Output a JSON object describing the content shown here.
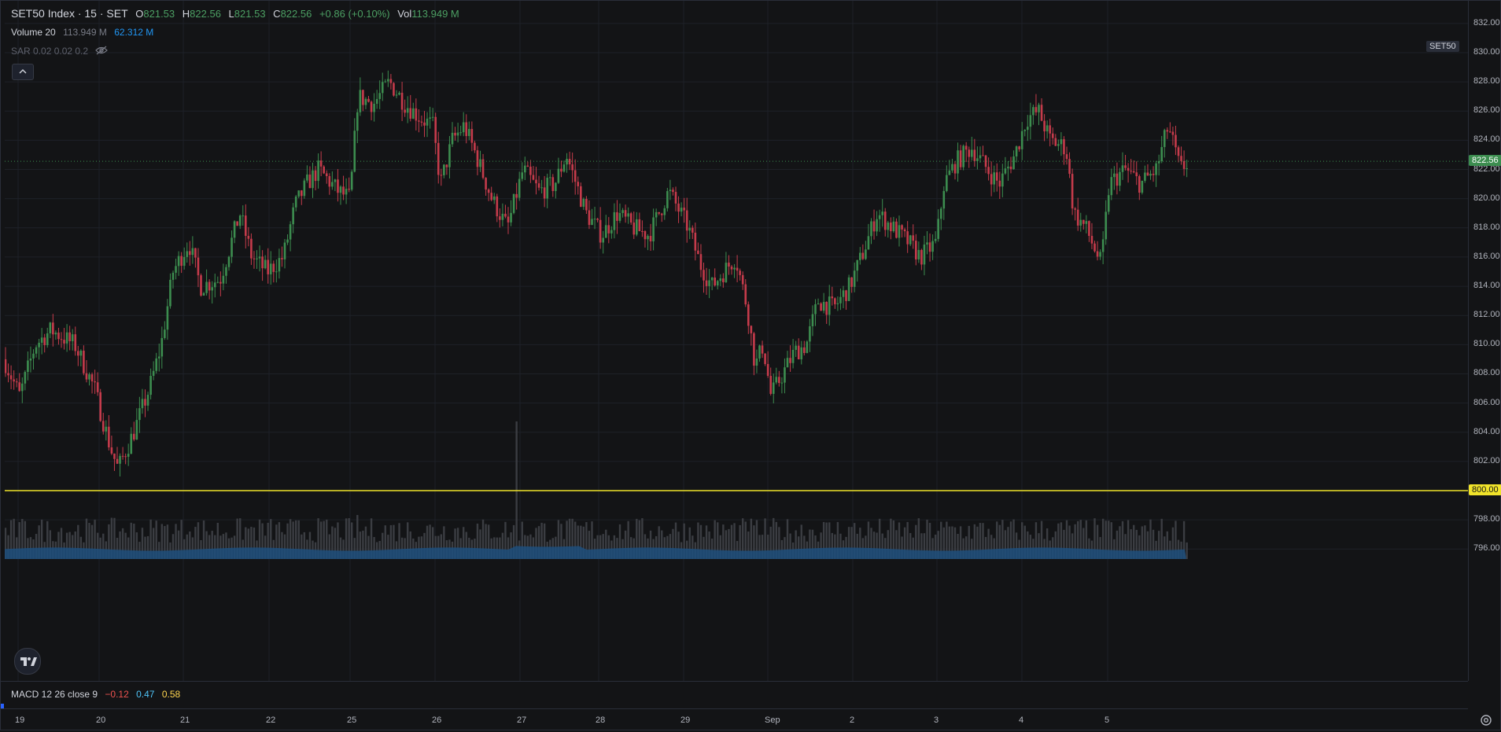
{
  "header": {
    "symbol": "SET50 Index · 15 · SET",
    "o_label": "O",
    "o_value": "821.53",
    "h_label": "H",
    "h_value": "822.56",
    "l_label": "L",
    "l_value": "821.53",
    "c_label": "C",
    "c_value": "822.56",
    "change": "+0.86 (+0.10%)",
    "vol_label": "Vol",
    "vol_value": "113.949 M"
  },
  "volume_indicator": {
    "name": "Volume 20",
    "value": "113.949 M",
    "ma_value": "62.312 M"
  },
  "sar_indicator": {
    "name": "SAR 0.02 0.02 0.2"
  },
  "macd_indicator": {
    "name": "MACD 12 26 close 9",
    "v1": "−0.12",
    "v2": "0.47",
    "v3": "0.58"
  },
  "symbol_badge": "SET50",
  "price_axis": {
    "ticks": [
      "832.00",
      "830.00",
      "828.00",
      "826.00",
      "824.00",
      "822.00",
      "820.00",
      "818.00",
      "816.00",
      "814.00",
      "812.00",
      "810.00",
      "808.00",
      "806.00",
      "804.00",
      "802.00",
      "798.00",
      "796.00"
    ],
    "last_price_tag": "822.56",
    "line_tag": "800.00"
  },
  "time_axis": {
    "labels": [
      "19",
      "20",
      "21",
      "22",
      "25",
      "26",
      "27",
      "28",
      "29",
      "Sep",
      "2",
      "3",
      "4",
      "5"
    ]
  },
  "colors": {
    "up": "#26a69a",
    "down": "#ef5350",
    "candle_up": "#3c8d4f",
    "candle_down": "#c53b4b",
    "horizontal_line": "#f0e32a",
    "volume_ma": "#2962ff",
    "last_price": "#3c8d4f"
  },
  "chart_data": {
    "type": "candlestick",
    "symbol": "SET50 Index",
    "interval": "15",
    "y_range": [
      795,
      833
    ],
    "horizontal_line": 800.0,
    "last_price": 822.56,
    "anchors": [
      {
        "x": 0,
        "y": 809.0
      },
      {
        "x": 20,
        "y": 806.5
      },
      {
        "x": 40,
        "y": 810.0
      },
      {
        "x": 60,
        "y": 811.0
      },
      {
        "x": 90,
        "y": 810.0
      },
      {
        "x": 115,
        "y": 807.0
      },
      {
        "x": 135,
        "y": 803.0
      },
      {
        "x": 145,
        "y": 801.5
      },
      {
        "x": 165,
        "y": 804.0
      },
      {
        "x": 185,
        "y": 807.0
      },
      {
        "x": 200,
        "y": 810.0
      },
      {
        "x": 215,
        "y": 815.0
      },
      {
        "x": 235,
        "y": 817.0
      },
      {
        "x": 250,
        "y": 814.0
      },
      {
        "x": 275,
        "y": 814.5
      },
      {
        "x": 300,
        "y": 819.0
      },
      {
        "x": 315,
        "y": 816.0
      },
      {
        "x": 335,
        "y": 815.0
      },
      {
        "x": 355,
        "y": 816.0
      },
      {
        "x": 370,
        "y": 819.5
      },
      {
        "x": 385,
        "y": 821.0
      },
      {
        "x": 400,
        "y": 822.0
      },
      {
        "x": 425,
        "y": 820.5
      },
      {
        "x": 440,
        "y": 820.0
      },
      {
        "x": 450,
        "y": 827.0
      },
      {
        "x": 470,
        "y": 826.5
      },
      {
        "x": 490,
        "y": 828.0
      },
      {
        "x": 510,
        "y": 826.5
      },
      {
        "x": 530,
        "y": 825.5
      },
      {
        "x": 545,
        "y": 825.0
      },
      {
        "x": 555,
        "y": 821.0
      },
      {
        "x": 570,
        "y": 824.0
      },
      {
        "x": 585,
        "y": 825.0
      },
      {
        "x": 600,
        "y": 823.0
      },
      {
        "x": 620,
        "y": 820.0
      },
      {
        "x": 640,
        "y": 818.0
      },
      {
        "x": 660,
        "y": 822.0
      },
      {
        "x": 680,
        "y": 820.5
      },
      {
        "x": 700,
        "y": 821.0
      },
      {
        "x": 715,
        "y": 823.0
      },
      {
        "x": 740,
        "y": 819.0
      },
      {
        "x": 760,
        "y": 817.5
      },
      {
        "x": 780,
        "y": 819.0
      },
      {
        "x": 800,
        "y": 818.0
      },
      {
        "x": 820,
        "y": 817.5
      },
      {
        "x": 845,
        "y": 820.5
      },
      {
        "x": 870,
        "y": 818.0
      },
      {
        "x": 885,
        "y": 815.5
      },
      {
        "x": 900,
        "y": 814.0
      },
      {
        "x": 915,
        "y": 815.0
      },
      {
        "x": 930,
        "y": 816.0
      },
      {
        "x": 945,
        "y": 812.5
      },
      {
        "x": 955,
        "y": 808.5
      },
      {
        "x": 965,
        "y": 810.0
      },
      {
        "x": 975,
        "y": 806.5
      },
      {
        "x": 990,
        "y": 808.0
      },
      {
        "x": 1005,
        "y": 809.5
      },
      {
        "x": 1020,
        "y": 810.0
      },
      {
        "x": 1035,
        "y": 813.0
      },
      {
        "x": 1055,
        "y": 812.5
      },
      {
        "x": 1075,
        "y": 814.0
      },
      {
        "x": 1090,
        "y": 816.0
      },
      {
        "x": 1110,
        "y": 819.0
      },
      {
        "x": 1130,
        "y": 818.0
      },
      {
        "x": 1150,
        "y": 817.0
      },
      {
        "x": 1165,
        "y": 816.0
      },
      {
        "x": 1185,
        "y": 817.0
      },
      {
        "x": 1195,
        "y": 821.0
      },
      {
        "x": 1210,
        "y": 822.5
      },
      {
        "x": 1230,
        "y": 823.5
      },
      {
        "x": 1250,
        "y": 822.0
      },
      {
        "x": 1265,
        "y": 821.0
      },
      {
        "x": 1285,
        "y": 823.0
      },
      {
        "x": 1300,
        "y": 825.5
      },
      {
        "x": 1315,
        "y": 826.0
      },
      {
        "x": 1330,
        "y": 824.0
      },
      {
        "x": 1350,
        "y": 823.5
      },
      {
        "x": 1360,
        "y": 819.0
      },
      {
        "x": 1375,
        "y": 818.0
      },
      {
        "x": 1395,
        "y": 815.5
      },
      {
        "x": 1405,
        "y": 821.0
      },
      {
        "x": 1425,
        "y": 822.0
      },
      {
        "x": 1445,
        "y": 821.0
      },
      {
        "x": 1465,
        "y": 822.0
      },
      {
        "x": 1480,
        "y": 825.0
      },
      {
        "x": 1495,
        "y": 822.0
      },
      {
        "x": 1507,
        "y": 822.56
      }
    ],
    "volume_ma_level": 0.42,
    "volume_spikes": [
      {
        "x": 652,
        "v": 1.0
      },
      {
        "x": 450,
        "v": 0.32
      },
      {
        "x": 237,
        "v": 0.2
      },
      {
        "x": 945,
        "v": 0.2
      },
      {
        "x": 1195,
        "v": 0.2
      },
      {
        "x": 1300,
        "v": 0.15
      },
      {
        "x": 1380,
        "v": 0.15
      },
      {
        "x": 555,
        "v": 0.18
      }
    ]
  }
}
